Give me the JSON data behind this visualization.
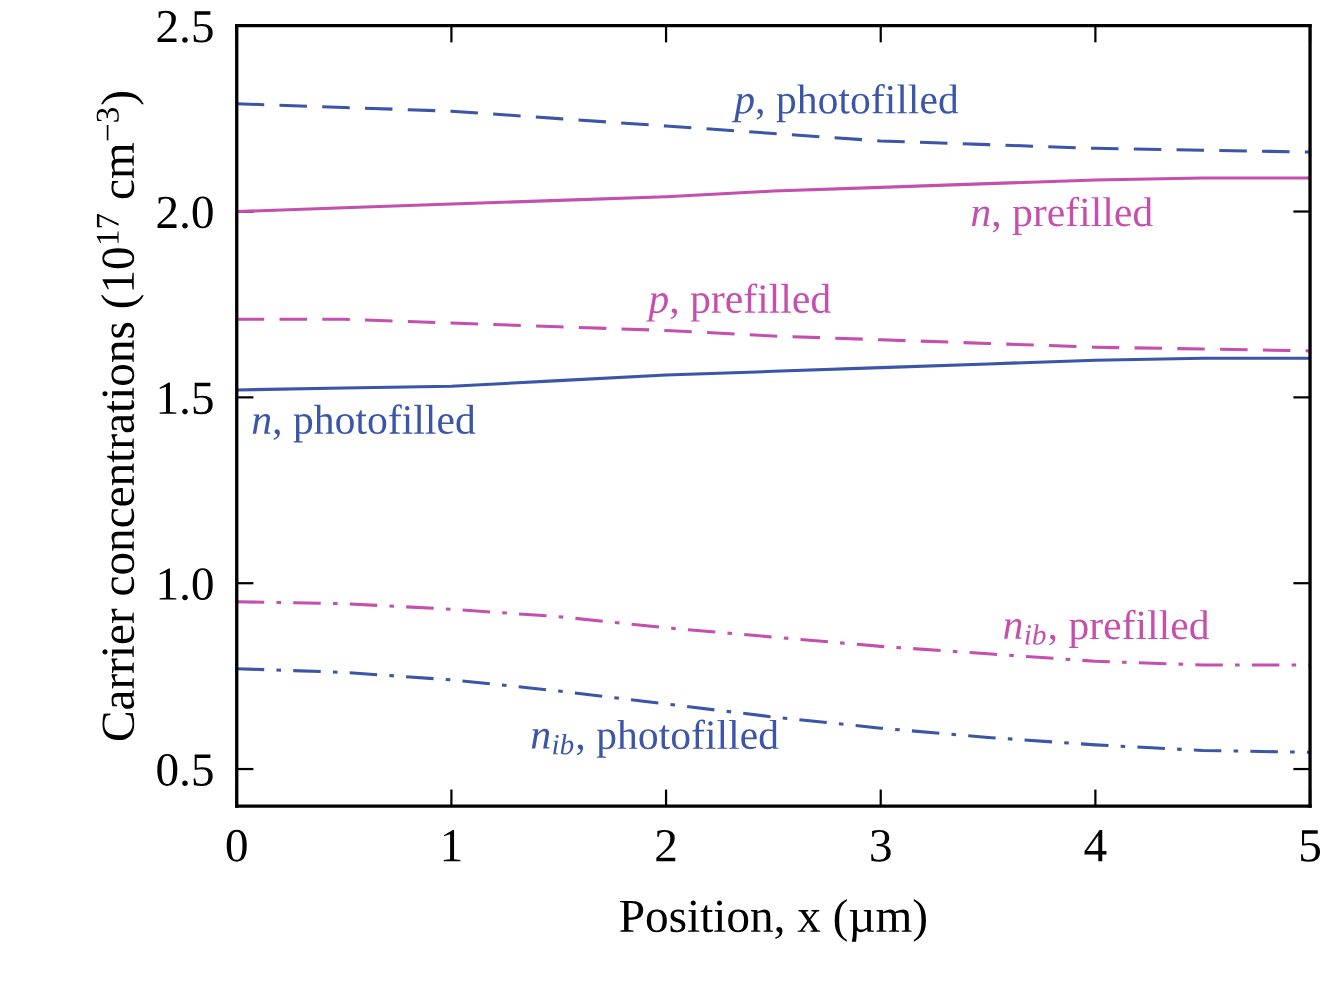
{
  "chart_data": {
    "type": "line",
    "xlabel": "Position, x (µm)",
    "ylabel": "Carrier concentrations (10$^{17}$ cm$^{−3}$)",
    "x": [
      0,
      0.5,
      1,
      1.5,
      2,
      2.5,
      3,
      3.5,
      4,
      4.5,
      5
    ],
    "xlim": [
      0,
      5
    ],
    "xticks": [
      0,
      1,
      2,
      3,
      4,
      5
    ],
    "ylim": [
      0.4,
      2.5
    ],
    "yticks": [
      {
        "value": 0.5,
        "label": "0.5"
      },
      {
        "value": 1.0,
        "label": "1.0"
      },
      {
        "value": 1.5,
        "label": "1.5"
      },
      {
        "value": 2.0,
        "label": "2.0"
      },
      {
        "value": 2.5,
        "label": "2.5"
      }
    ],
    "grid": false,
    "marker": "none",
    "series": [
      {
        "name": "p, photofilled",
        "color": "#3b55a9",
        "line_style": "dashed",
        "values": [
          2.29,
          2.28,
          2.27,
          2.25,
          2.23,
          2.21,
          2.19,
          2.18,
          2.17,
          2.165,
          2.16
        ]
      },
      {
        "name": "n, prefilled",
        "color": "#c54fad",
        "line_style": "solid",
        "values": [
          2.0,
          2.01,
          2.02,
          2.03,
          2.04,
          2.055,
          2.065,
          2.075,
          2.085,
          2.09,
          2.09
        ]
      },
      {
        "name": "p, prefilled",
        "color": "#c54fad",
        "line_style": "dashed",
        "values": [
          1.71,
          1.71,
          1.7,
          1.69,
          1.68,
          1.665,
          1.655,
          1.645,
          1.635,
          1.63,
          1.625
        ]
      },
      {
        "name": "n, photofilled",
        "color": "#3b55a9",
        "line_style": "solid",
        "values": [
          1.52,
          1.525,
          1.53,
          1.545,
          1.56,
          1.57,
          1.58,
          1.59,
          1.6,
          1.605,
          1.605
        ]
      },
      {
        "name": "n$_{ib}$, prefilled",
        "color": "#c54fad",
        "line_style": "dashdot",
        "values": [
          0.95,
          0.945,
          0.93,
          0.91,
          0.88,
          0.855,
          0.83,
          0.81,
          0.79,
          0.78,
          0.78
        ]
      },
      {
        "name": "n$_{ib}$, photofilled",
        "color": "#3b55a9",
        "line_style": "dashdot",
        "values": [
          0.77,
          0.76,
          0.74,
          0.71,
          0.675,
          0.64,
          0.61,
          0.585,
          0.565,
          0.55,
          0.545
        ]
      }
    ]
  }
}
